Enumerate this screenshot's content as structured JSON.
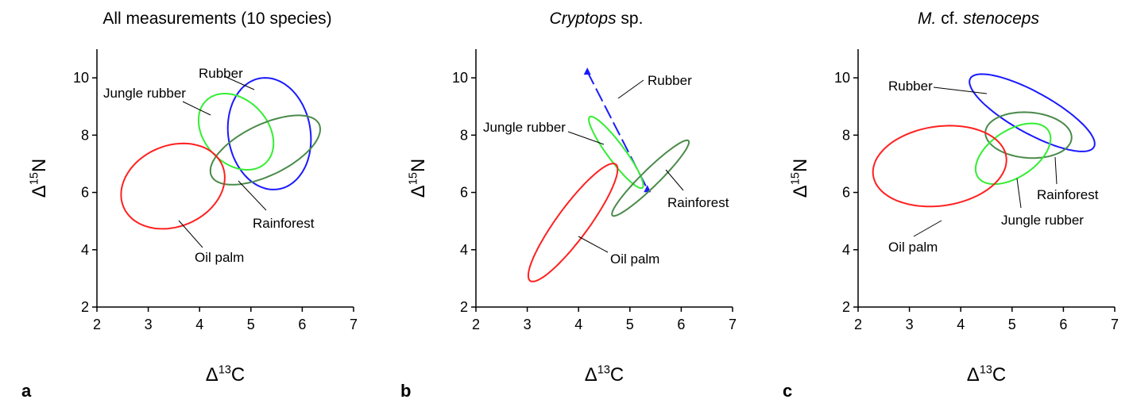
{
  "chart_data": [
    {
      "type": "ellipse",
      "panel": "a",
      "title": [
        {
          "text": "All measurements (10 species)",
          "italic": false
        }
      ],
      "xlabel": {
        "symbol": "Δ",
        "superscript": "13",
        "element": "C"
      },
      "ylabel": {
        "symbol": "Δ",
        "superscript": "15",
        "element": "N"
      },
      "xlim": [
        2,
        7
      ],
      "xticks": [
        2,
        3,
        4,
        5,
        6,
        7
      ],
      "ylim": [
        2,
        11
      ],
      "yticks": [
        2,
        4,
        6,
        8,
        10
      ],
      "series": [
        {
          "name": "Rubber",
          "color": "#1a1aff",
          "x_center": 5.36,
          "y_center": 8.05,
          "x_radius": 0.81,
          "y_radius": 1.95,
          "correlation": -0.1
        },
        {
          "name": "Jungle rubber",
          "color": "#33ee33",
          "x_center": 4.71,
          "y_center": 8.12,
          "x_radius": 0.73,
          "y_radius": 1.33,
          "correlation": -0.3
        },
        {
          "name": "Rainforest",
          "color": "#4a8a4a",
          "x_center": 5.28,
          "y_center": 7.48,
          "x_radius": 1.07,
          "y_radius": 1.21,
          "correlation": 0.6
        },
        {
          "name": "Oil palm",
          "color": "#ff2020",
          "x_center": 3.48,
          "y_center": 6.22,
          "x_radius": 1.01,
          "y_radius": 1.49,
          "correlation": 0.2
        }
      ]
    },
    {
      "type": "ellipse",
      "panel": "b",
      "title": [
        {
          "text": "Cryptops",
          "italic": true
        },
        {
          "text": " sp.",
          "italic": false
        }
      ],
      "xlabel": {
        "symbol": "Δ",
        "superscript": "13",
        "element": "C"
      },
      "ylabel": {
        "symbol": "Δ",
        "superscript": "15",
        "element": "N"
      },
      "xlim": [
        2,
        7
      ],
      "xticks": [
        2,
        3,
        4,
        5,
        6,
        7
      ],
      "ylim": [
        2,
        11
      ],
      "yticks": [
        2,
        4,
        6,
        8,
        10
      ],
      "series": [
        {
          "name": "Rubber",
          "color": "#1a1aff",
          "style": "dashed",
          "marker": "triangle",
          "x": [
            4.17,
            5.34
          ],
          "y": [
            10.22,
            6.12
          ]
        },
        {
          "name": "Jungle rubber",
          "color": "#33ee33",
          "x_center": 4.73,
          "y_center": 7.4,
          "x_radius": 0.53,
          "y_radius": 1.25,
          "correlation": -0.92
        },
        {
          "name": "Rainforest",
          "color": "#4a8a4a",
          "x_center": 5.4,
          "y_center": 6.5,
          "x_radius": 0.75,
          "y_radius": 1.32,
          "correlation": 0.95
        },
        {
          "name": "Oil palm",
          "color": "#ff2020",
          "x_center": 3.89,
          "y_center": 4.95,
          "x_radius": 0.87,
          "y_radius": 2.06,
          "correlation": 0.9
        }
      ]
    },
    {
      "type": "ellipse",
      "panel": "c",
      "title": [
        {
          "text": "M.",
          "italic": true
        },
        {
          "text": " cf. ",
          "italic": false
        },
        {
          "text": "stenoceps",
          "italic": true
        }
      ],
      "xlabel": {
        "symbol": "Δ",
        "superscript": "13",
        "element": "C"
      },
      "ylabel": {
        "symbol": "Δ",
        "superscript": "15",
        "element": "N"
      },
      "xlim": [
        2,
        7
      ],
      "xticks": [
        2,
        3,
        4,
        5,
        6,
        7
      ],
      "ylim": [
        2,
        11
      ],
      "yticks": [
        2,
        4,
        6,
        8,
        10
      ],
      "series": [
        {
          "name": "Rubber",
          "color": "#1a1aff",
          "x_center": 5.39,
          "y_center": 8.78,
          "x_radius": 1.22,
          "y_radius": 1.35,
          "correlation": -0.8
        },
        {
          "name": "Rainforest",
          "color": "#4a8a4a",
          "x_center": 5.32,
          "y_center": 8.0,
          "x_radius": 0.84,
          "y_radius": 0.8,
          "correlation": -0.1
        },
        {
          "name": "Jungle rubber",
          "color": "#33ee33",
          "x_center": 5.02,
          "y_center": 7.35,
          "x_radius": 0.73,
          "y_radius": 1.06,
          "correlation": 0.5
        },
        {
          "name": "Oil palm",
          "color": "#ff2020",
          "x_center": 3.59,
          "y_center": 6.92,
          "x_radius": 1.3,
          "y_radius": 1.41,
          "correlation": 0.15
        }
      ]
    }
  ]
}
